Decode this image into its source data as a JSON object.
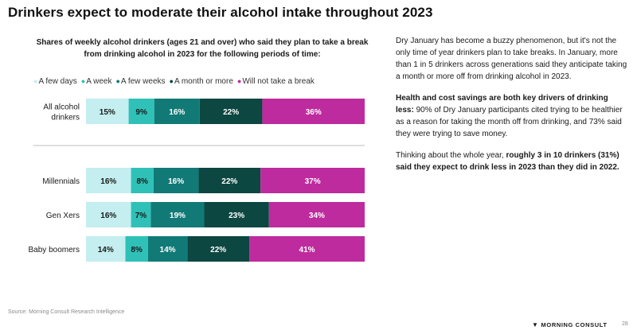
{
  "title": "Drinkers expect to moderate their alcohol intake throughout 2023",
  "chart_data": {
    "type": "bar",
    "orientation": "horizontal-stacked-100",
    "subtitle": "Shares of weekly alcohol drinkers (ages 21 and over) who said they plan to take a break from drinking alcohol in 2023 for the following periods of time:",
    "legend_position": "top",
    "categories": [
      "All alcohol drinkers",
      "Millennials",
      "Gen Xers",
      "Baby boomers"
    ],
    "series": [
      {
        "name": "A few days",
        "color": "#c4eeef",
        "values": [
          15,
          16,
          16,
          14
        ]
      },
      {
        "name": "A week",
        "color": "#2fc1b7",
        "values": [
          9,
          8,
          7,
          8
        ]
      },
      {
        "name": "A few weeks",
        "color": "#117a77",
        "values": [
          16,
          16,
          19,
          14
        ]
      },
      {
        "name": "A month or more",
        "color": "#0d4741",
        "values": [
          22,
          22,
          23,
          22
        ]
      },
      {
        "name": "Will not take a break",
        "color": "#be2b9e",
        "values": [
          36,
          37,
          34,
          41
        ]
      }
    ],
    "value_suffix": "%",
    "xlim": [
      0,
      100
    ]
  },
  "body": {
    "p1": "Dry January has become a buzzy phenomenon, but it's not the only time of year drinkers plan to take breaks. In January, more than 1 in 5 drinkers across generations said they anticipate taking a month or more off from drinking alcohol in 2023.",
    "p2_bold": "Health and cost savings are both key drivers of drinking less:",
    "p2_rest": " 90% of Dry January participants cited trying to be healthier as a reason for taking the month off from drinking, and 73% said they were trying to save money.",
    "p3_start": "Thinking about the whole year, ",
    "p3_bold": "roughly 3 in 10 drinkers (31%) said they expect to drink less in 2023 than they did in 2022."
  },
  "footer": {
    "source": "Source: Morning Consult Research Intelligence",
    "brand": "MORNING CONSULT",
    "page": "28",
    "logo_icon": "morning-consult-chevron-icon"
  }
}
